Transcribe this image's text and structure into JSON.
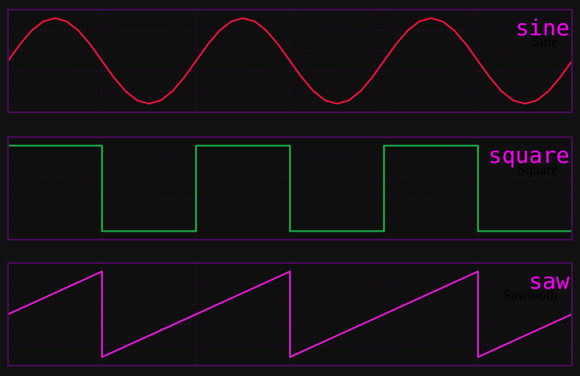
{
  "colors": {
    "background": "#111111",
    "panel_bg": "#0f0f0f",
    "panel_border": "#4b0a5e",
    "grid": "#3a0a44",
    "label": "#ff00ff",
    "sublabel": "#000000"
  },
  "chart_data": [
    {
      "type": "line",
      "title": "sine",
      "subtitle": "Sine",
      "x": [
        0,
        0.0625,
        0.125,
        0.1875,
        0.25,
        0.3125,
        0.375,
        0.4375,
        0.5,
        0.5625,
        0.625,
        0.6875,
        0.75,
        0.8125,
        0.875,
        0.9375,
        1,
        1.0625,
        1.125,
        1.1875,
        1.25,
        1.3125,
        1.375,
        1.4375,
        1.5,
        1.5625,
        1.625,
        1.6875,
        1.75,
        1.8125,
        1.875,
        1.9375,
        2,
        2.0625,
        2.125,
        2.1875,
        2.25,
        2.3125,
        2.375,
        2.4375,
        2.5,
        2.5625,
        2.625,
        2.6875,
        2.75,
        2.8125,
        2.875,
        2.9375,
        3
      ],
      "series": [
        {
          "color": "#e8143c",
          "values": [
            0,
            0.383,
            0.707,
            0.924,
            1,
            0.924,
            0.707,
            0.383,
            0,
            -0.383,
            -0.707,
            -0.924,
            -1,
            -0.924,
            -0.707,
            -0.383,
            0,
            0.383,
            0.707,
            0.924,
            1,
            0.924,
            0.707,
            0.383,
            0,
            -0.383,
            -0.707,
            -0.924,
            -1,
            -0.924,
            -0.707,
            -0.383,
            0,
            0.383,
            0.707,
            0.924,
            1,
            0.924,
            0.707,
            0.383,
            0,
            -0.383,
            -0.707,
            -0.924,
            -1,
            -0.924,
            -0.707,
            -0.383,
            0
          ]
        }
      ],
      "xlim": [
        0,
        3
      ],
      "ylim": [
        -1.2,
        1.2
      ],
      "grid": true
    },
    {
      "type": "line",
      "title": "square",
      "subtitle": "Square",
      "x": [
        0,
        0.5,
        0.5,
        1,
        1,
        1.5,
        1.5,
        2,
        2,
        2.5,
        2.5,
        3
      ],
      "series": [
        {
          "color": "#17b04a",
          "values": [
            1,
            1,
            -1,
            -1,
            1,
            1,
            -1,
            -1,
            1,
            1,
            -1,
            -1
          ]
        }
      ],
      "xlim": [
        0,
        3
      ],
      "ylim": [
        -1.2,
        1.2
      ],
      "grid": true
    },
    {
      "type": "line",
      "title": "saw",
      "subtitle": "Sawtooth",
      "x": [
        0,
        0.5,
        0.5,
        1.5,
        1.5,
        2.5,
        2.5,
        3
      ],
      "series": [
        {
          "color": "#e41ad8",
          "values": [
            0,
            1,
            -1,
            1,
            -1,
            1,
            -1,
            0
          ]
        }
      ],
      "xlim": [
        0,
        3
      ],
      "ylim": [
        -1.2,
        1.2
      ],
      "grid": true
    }
  ]
}
